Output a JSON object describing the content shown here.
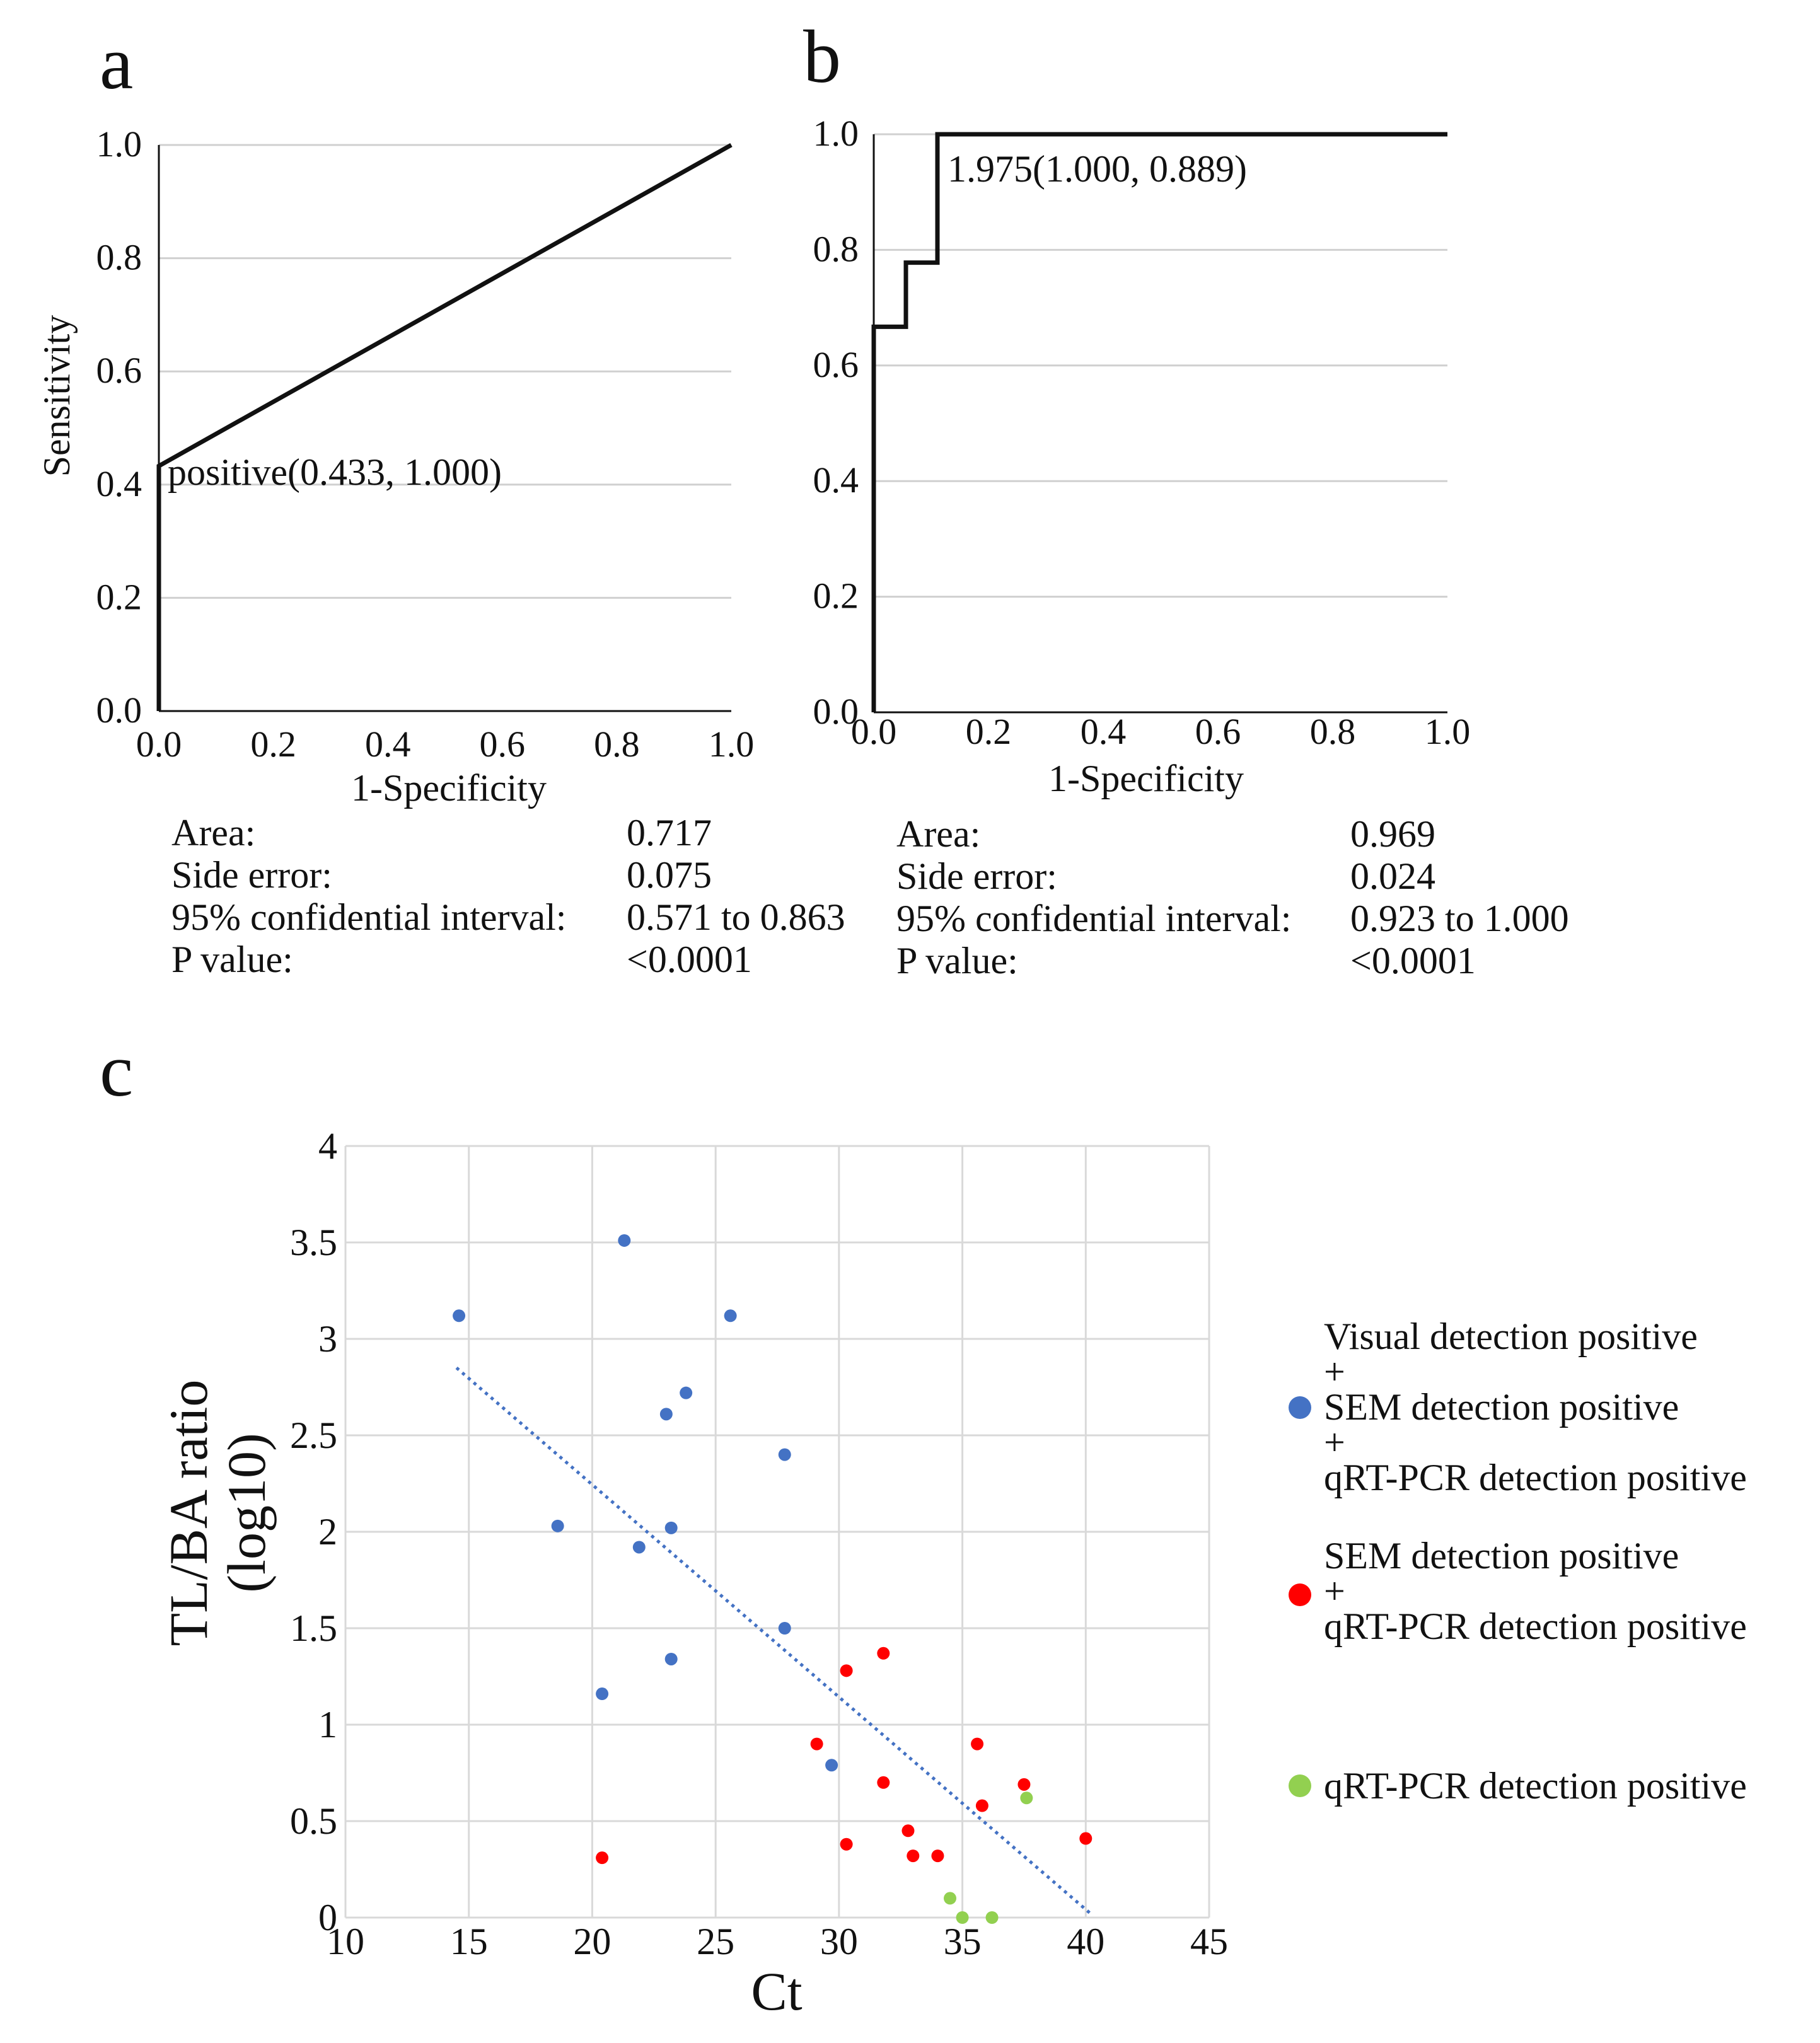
{
  "chart_data": [
    {
      "type": "line",
      "panel_label": "a",
      "xlabel": "1-Specificity",
      "ylabel": "Sensitivity",
      "xlim": [
        0,
        1
      ],
      "ylim": [
        0,
        1
      ],
      "xticks": [
        "0.0",
        "0.2",
        "0.4",
        "0.6",
        "0.8",
        "1.0"
      ],
      "yticks": [
        "0.0",
        "0.2",
        "0.4",
        "0.6",
        "0.8",
        "1.0"
      ],
      "grid": "horizontal",
      "roc_points": [
        [
          0,
          0
        ],
        [
          0,
          0.433
        ],
        [
          1.0,
          1.0
        ]
      ],
      "annotation": {
        "text": "positive(0.433, 1.000)",
        "x": 0.0,
        "y": 0.433
      },
      "stats": [
        {
          "label": "Area:",
          "value": "0.717"
        },
        {
          "label": "Side error:",
          "value": "0.075"
        },
        {
          "label": "95% confidential interval:",
          "value": "0.571 to 0.863"
        },
        {
          "label": "P value:",
          "value": "<0.0001"
        }
      ]
    },
    {
      "type": "line",
      "panel_label": "b",
      "xlabel": "1-Specificity",
      "ylabel": "",
      "xlim": [
        0,
        1
      ],
      "ylim": [
        0,
        1
      ],
      "xticks": [
        "0.0",
        "0.2",
        "0.4",
        "0.6",
        "0.8",
        "1.0"
      ],
      "yticks": [
        "0.0",
        "0.2",
        "0.4",
        "0.6",
        "0.8",
        "1.0"
      ],
      "grid": "horizontal",
      "roc_points": [
        [
          0,
          0
        ],
        [
          0,
          0.667
        ],
        [
          0.056,
          0.667
        ],
        [
          0.056,
          0.778
        ],
        [
          0.111,
          0.778
        ],
        [
          0.111,
          1.0
        ],
        [
          1.0,
          1.0
        ]
      ],
      "annotation": {
        "text": "1.975(1.000, 0.889)",
        "x": 0.111,
        "y": 1.0
      },
      "stats": [
        {
          "label": "Area:",
          "value": "0.969"
        },
        {
          "label": "Side error:",
          "value": "0.024"
        },
        {
          "label": "95% confidential interval:",
          "value": "0.923 to 1.000"
        },
        {
          "label": "P value:",
          "value": "<0.0001"
        }
      ]
    },
    {
      "type": "scatter",
      "panel_label": "c",
      "xlabel": "Ct",
      "ylabel": "TL/BA ratio (log10)",
      "ylabel_lines": [
        "TL/BA ratio",
        "(log10)"
      ],
      "xlim": [
        10,
        45
      ],
      "ylim": [
        0,
        4
      ],
      "xticks": [
        "10",
        "15",
        "20",
        "25",
        "30",
        "35",
        "40",
        "45"
      ],
      "yticks": [
        "0",
        "0.5",
        "1",
        "1.5",
        "2",
        "2.5",
        "3",
        "3.5",
        "4"
      ],
      "grid": "both",
      "trendline": {
        "x": [
          14.5,
          40.2
        ],
        "y": [
          2.85,
          0.02
        ]
      },
      "series": [
        {
          "name": "Visual detection positive + SEM detection positive + qRT-PCR detection positive",
          "legend_lines": [
            "Visual detection positive",
            "+",
            "SEM detection positive",
            "+",
            "qRT-PCR detection positive"
          ],
          "color": "#4472c4",
          "points": [
            [
              14.6,
              3.12
            ],
            [
              18.6,
              2.03
            ],
            [
              20.4,
              1.16
            ],
            [
              21.3,
              3.51
            ],
            [
              21.9,
              1.92
            ],
            [
              23.0,
              2.61
            ],
            [
              23.2,
              2.02
            ],
            [
              23.2,
              1.34
            ],
            [
              23.8,
              2.72
            ],
            [
              25.6,
              3.12
            ],
            [
              27.8,
              2.4
            ],
            [
              27.8,
              1.5
            ],
            [
              29.7,
              0.79
            ]
          ]
        },
        {
          "name": "SEM detection positive + qRT-PCR detection positive",
          "legend_lines": [
            "SEM detection positive",
            "+",
            "qRT-PCR detection positive"
          ],
          "color": "#ff0000",
          "points": [
            [
              20.4,
              0.31
            ],
            [
              29.1,
              0.9
            ],
            [
              30.3,
              1.28
            ],
            [
              30.3,
              0.38
            ],
            [
              31.8,
              1.37
            ],
            [
              31.8,
              0.7
            ],
            [
              32.8,
              0.45
            ],
            [
              33.0,
              0.32
            ],
            [
              34.0,
              0.32
            ],
            [
              35.6,
              0.9
            ],
            [
              35.8,
              0.58
            ],
            [
              37.5,
              0.69
            ],
            [
              40.0,
              0.41
            ]
          ]
        },
        {
          "name": "qRT-PCR detection positive",
          "legend_lines": [
            "qRT-PCR detection positive"
          ],
          "color": "#92d050",
          "points": [
            [
              34.5,
              0.1
            ],
            [
              35.0,
              0.0
            ],
            [
              36.2,
              0.0
            ],
            [
              37.6,
              0.62
            ]
          ]
        }
      ]
    }
  ]
}
